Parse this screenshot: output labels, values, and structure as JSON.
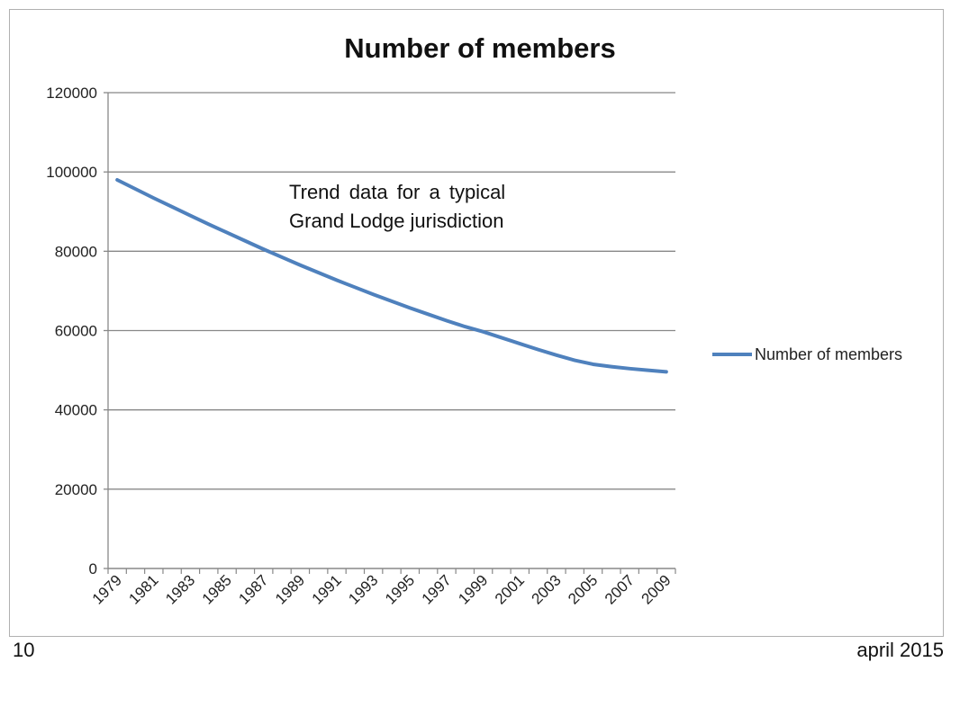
{
  "chart_data": {
    "type": "line",
    "title": "Number of members",
    "xlabel": "",
    "ylabel": "",
    "annotation": [
      "Trend data for a typical",
      "Grand Lodge jurisdiction"
    ],
    "ylim": [
      0,
      120000
    ],
    "yticks": [
      0,
      20000,
      40000,
      60000,
      80000,
      100000,
      120000
    ],
    "ytick_labels": [
      "0",
      "20000",
      "40000",
      "60000",
      "80000",
      "100000",
      "120000"
    ],
    "grid": true,
    "legend_position": "right",
    "x": [
      1979,
      1980,
      1981,
      1982,
      1983,
      1984,
      1985,
      1986,
      1987,
      1988,
      1989,
      1990,
      1991,
      1992,
      1993,
      1994,
      1995,
      1996,
      1997,
      1998,
      1999,
      2000,
      2001,
      2002,
      2003,
      2004,
      2005,
      2006,
      2007,
      2008,
      2009
    ],
    "xtick_labels": [
      "1979",
      "1981",
      "1983",
      "1985",
      "1987",
      "1989",
      "1991",
      "1993",
      "1995",
      "1997",
      "1999",
      "2001",
      "2003",
      "2005",
      "2007",
      "2009"
    ],
    "series": [
      {
        "name": "Number of members",
        "color": "#4f81bd",
        "values": [
          98000,
          95700,
          93400,
          91200,
          89000,
          86800,
          84700,
          82600,
          80500,
          78500,
          76500,
          74600,
          72700,
          70900,
          69100,
          67400,
          65700,
          64100,
          62500,
          61000,
          59700,
          58200,
          56700,
          55200,
          53800,
          52500,
          51500,
          50900,
          50400,
          50000,
          49600
        ]
      }
    ]
  },
  "footer": {
    "page_number": "10",
    "date": "april 2015"
  }
}
